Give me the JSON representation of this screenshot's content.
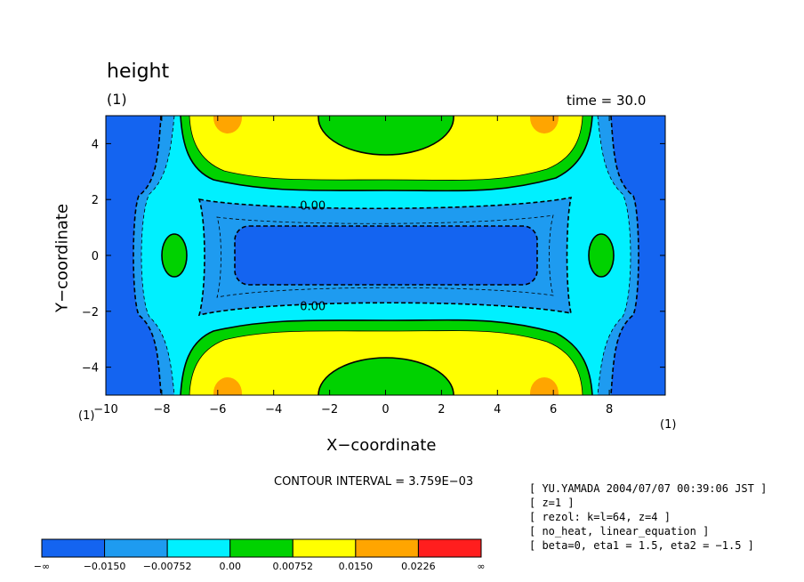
{
  "header": {
    "title": "height",
    "unit_label": "(1)",
    "time_label": "time = 30.0"
  },
  "axes": {
    "xlabel": "X−coordinate",
    "ylabel": "Y−coordinate",
    "x_unit_left": "(1)",
    "x_unit_right": "(1)"
  },
  "contour_interval": "CONTOUR INTERVAL = 3.759E−03",
  "info_lines": [
    "[ YU.YAMADA 2004/07/07 00:39:06 JST ]",
    "[ z=1 ]",
    "[ rezol: k=l=64, z=4 ]",
    "[ no_heat, linear_equation ]",
    "[ beta=0, eta1 = 1.5, eta2 = −1.5 ]"
  ],
  "chart_data": {
    "type": "heatmap",
    "title": "height",
    "xlabel": "X−coordinate",
    "ylabel": "Y−coordinate",
    "xlim": [
      -10,
      10
    ],
    "ylim": [
      -5,
      5
    ],
    "x_ticks": [
      -10,
      -8,
      -6,
      -4,
      -2,
      0,
      2,
      4,
      6,
      8
    ],
    "x_tick_labels": [
      "−10",
      "−8",
      "−6",
      "−4",
      "−2",
      "0",
      "2",
      "4",
      "6",
      "8"
    ],
    "y_ticks": [
      -4,
      -2,
      0,
      2,
      4
    ],
    "y_tick_labels": [
      "−4",
      "−2",
      "0",
      "2",
      "4"
    ],
    "contour_labels": [
      {
        "text": "0.00",
        "x": -2.6,
        "y": 1.8
      },
      {
        "text": "0.00",
        "x": -2.6,
        "y": -1.8
      }
    ],
    "colorbar": {
      "levels": [
        "−∞",
        "−0.0150",
        "−0.00752",
        "0.00",
        "0.00752",
        "0.0150",
        "0.0226",
        "∞"
      ],
      "colors": [
        "#1464f0",
        "#1e9bf0",
        "#00f0ff",
        "#00d200",
        "#ffff00",
        "#ffa500",
        "#ff1e1e"
      ]
    },
    "colors": {
      "deep_blue": "#1464f0",
      "mid_blue": "#1e9bf0",
      "cyan": "#00f0ff",
      "green": "#00d200",
      "yellow": "#ffff00",
      "orange": "#ffa500",
      "red": "#ff1e1e"
    }
  }
}
